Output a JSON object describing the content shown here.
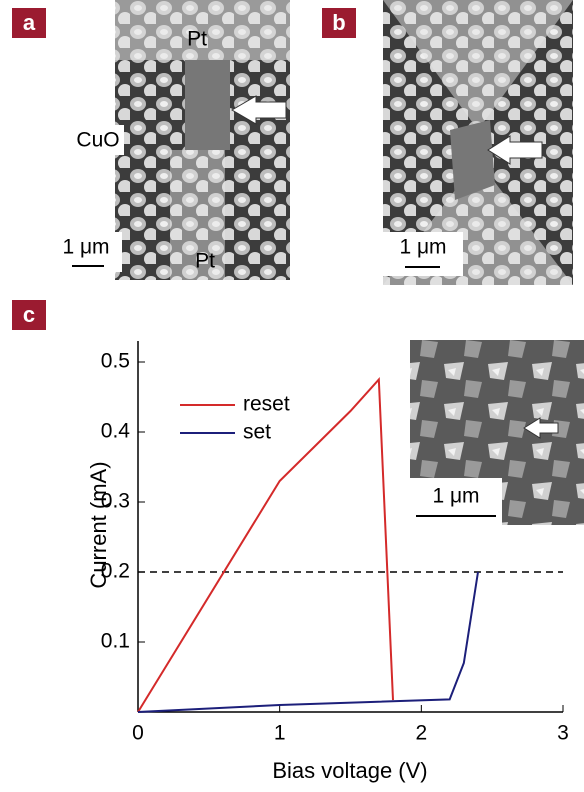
{
  "panels": [
    {
      "label": "a",
      "annotations": [
        "Pt",
        "CuO",
        "Pt"
      ],
      "scale_bar": "1 μm"
    },
    {
      "label": "b",
      "scale_bar": "1 μm"
    },
    {
      "label": "c",
      "inset_scale_bar": "1 μm"
    }
  ],
  "chart_data": {
    "type": "line",
    "x_label": "Bias voltage (V)",
    "y_label": "Current (mA)",
    "xlim": [
      0,
      3
    ],
    "ylim": [
      0,
      0.53
    ],
    "xticks": [
      0,
      1,
      2,
      3
    ],
    "yticks": [
      0.1,
      0.2,
      0.3,
      0.4,
      0.5
    ],
    "hline": 0.2,
    "series": [
      {
        "name": "reset",
        "color": "#d42a2a",
        "x": [
          0,
          1,
          1.5,
          1.7,
          1.8
        ],
        "values": [
          0,
          0.33,
          0.43,
          0.475,
          0.017
        ]
      },
      {
        "name": "set",
        "color": "#1c1f7a",
        "x": [
          0,
          1,
          2.2,
          2.3,
          2.4
        ],
        "values": [
          0,
          0.01,
          0.018,
          0.07,
          0.2
        ]
      }
    ]
  }
}
